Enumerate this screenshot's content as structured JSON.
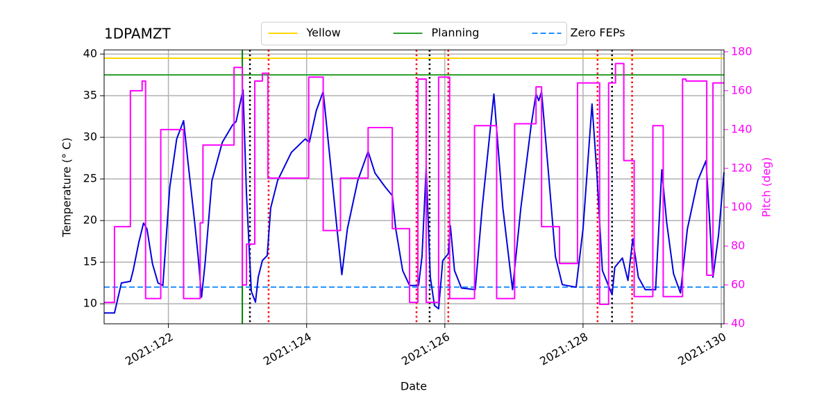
{
  "chart_data": {
    "type": "line",
    "title": "1DPAMZT",
    "xlabel": "Date",
    "ylabel": "Temperature ($^\\circ$C)",
    "y2label": "Pitch (deg)",
    "y2color": "#ff00ff",
    "xlim": [
      121.07,
      130.04
    ],
    "xticks": [
      {
        "value": 122,
        "label": "2021:122"
      },
      {
        "value": 124,
        "label": "2021:124"
      },
      {
        "value": 126,
        "label": "2021:126"
      },
      {
        "value": 128,
        "label": "2021:128"
      },
      {
        "value": 130,
        "label": "2021:130"
      }
    ],
    "ylim": [
      7.6,
      40.5
    ],
    "yticks": [
      10,
      15,
      20,
      25,
      30,
      35,
      40
    ],
    "y2lim": [
      40,
      181
    ],
    "y2ticks": [
      40,
      60,
      80,
      100,
      120,
      140,
      160,
      180
    ],
    "grid": true,
    "legend": "upper center",
    "hlines": [
      {
        "name": "Yellow",
        "value": 39.5,
        "color": "#ffd700",
        "style": "solid"
      },
      {
        "name": "Planning",
        "value": 37.5,
        "color": "#2ca02c",
        "style": "solid"
      },
      {
        "name": "Zero FEPs",
        "value": 12,
        "color": "#1e90ff",
        "style": "dashed"
      }
    ],
    "vlines": [
      {
        "value": 123.07,
        "color": "#008000",
        "style": "solid"
      },
      {
        "value": 123.18,
        "color": "#000000",
        "style": "dotted"
      },
      {
        "value": 125.78,
        "color": "#000000",
        "style": "dotted"
      },
      {
        "value": 128.42,
        "color": "#000000",
        "style": "dotted"
      },
      {
        "value": 123.45,
        "color": "#ff0000",
        "style": "dotted"
      },
      {
        "value": 125.59,
        "color": "#ff0000",
        "style": "dotted"
      },
      {
        "value": 126.05,
        "color": "#ff0000",
        "style": "dotted"
      },
      {
        "value": 128.21,
        "color": "#ff0000",
        "style": "dotted"
      },
      {
        "value": 128.71,
        "color": "#ff0000",
        "style": "dotted"
      }
    ],
    "series": [
      {
        "color": "#0000dd",
        "x": [
          121.07,
          121.22,
          121.27,
          121.32,
          121.45,
          121.49,
          121.57,
          121.64,
          121.69,
          121.77,
          121.85,
          121.92,
          122.02,
          122.12,
          122.22,
          122.28,
          122.38,
          122.43,
          122.48,
          122.53,
          122.63,
          122.78,
          122.93,
          122.98,
          123.08,
          123.13,
          123.2,
          123.26,
          123.3,
          123.36,
          123.43,
          123.48,
          123.58,
          123.78,
          123.98,
          124.04,
          124.14,
          124.24,
          124.34,
          124.44,
          124.51,
          124.59,
          124.74,
          124.89,
          124.99,
          125.14,
          125.24,
          125.29,
          125.39,
          125.49,
          125.62,
          125.67,
          125.73,
          125.79,
          125.85,
          125.91,
          125.97,
          126.05,
          126.08,
          126.14,
          126.24,
          126.44,
          126.54,
          126.71,
          126.84,
          126.98,
          127.1,
          127.25,
          127.32,
          127.36,
          127.4,
          127.5,
          127.6,
          127.7,
          127.9,
          128,
          128.13,
          128.2,
          128.28,
          128.42,
          128.46,
          128.57,
          128.65,
          128.72,
          128.8,
          128.9,
          129.05,
          129.14,
          129.21,
          129.31,
          129.41,
          129.51,
          129.66,
          129.78,
          129.88,
          129.96,
          130.04
        ],
        "values": [
          8.9,
          8.9,
          10.7,
          12.5,
          12.7,
          14,
          17.3,
          19.7,
          19,
          14.8,
          12.5,
          12.2,
          24,
          29.8,
          32,
          27.3,
          19.8,
          15.7,
          10.8,
          14.8,
          24.8,
          29.4,
          31.5,
          31.9,
          35.7,
          23.2,
          11.5,
          10.2,
          13.2,
          15.2,
          15.8,
          21.5,
          24.8,
          28.2,
          29.8,
          29.4,
          33.2,
          35.5,
          27.3,
          19,
          13.5,
          19,
          24.8,
          28.3,
          25.7,
          24,
          23,
          19,
          14,
          12.2,
          12.2,
          15.7,
          26.3,
          13.2,
          9.8,
          9.4,
          15.2,
          16,
          19.4,
          14,
          11.9,
          11.7,
          21.5,
          35.2,
          21.5,
          11.7,
          21.5,
          31.5,
          35.2,
          34.4,
          35.5,
          25.7,
          15.7,
          12.3,
          12,
          19,
          34,
          25.7,
          14,
          11.1,
          14.4,
          15.5,
          12.8,
          17.8,
          13.2,
          11.7,
          11.7,
          26.1,
          19.8,
          13.6,
          11.3,
          19,
          24.8,
          27.2,
          13.2,
          18.2,
          25.8
        ]
      },
      {
        "color": "#ff00ff",
        "axis": "y2",
        "drawstyle": "steps-post",
        "x": [
          121.07,
          121.22,
          121.45,
          121.62,
          121.67,
          121.89,
          122.22,
          122.46,
          122.5,
          122.95,
          123.07,
          123.13,
          123.25,
          123.36,
          123.44,
          124.03,
          124.24,
          124.49,
          124.89,
          125.24,
          125.49,
          125.61,
          125.73,
          125.91,
          126.07,
          126.43,
          126.75,
          127.01,
          127.32,
          127.4,
          127.66,
          127.92,
          128.24,
          128.37,
          128.47,
          128.59,
          128.74,
          129.01,
          129.16,
          129.44,
          129.49,
          129.79,
          129.88,
          130.04
        ],
        "values": [
          51,
          90,
          160,
          165,
          53,
          140,
          53,
          92,
          132,
          172,
          60,
          81,
          165,
          169,
          115,
          167,
          88,
          115,
          141,
          89,
          51,
          166,
          51,
          167,
          53,
          142,
          53,
          143,
          162,
          90,
          71,
          164,
          50,
          164,
          174,
          124,
          54,
          142,
          54,
          166,
          165,
          65,
          164,
          164
        ]
      }
    ]
  }
}
